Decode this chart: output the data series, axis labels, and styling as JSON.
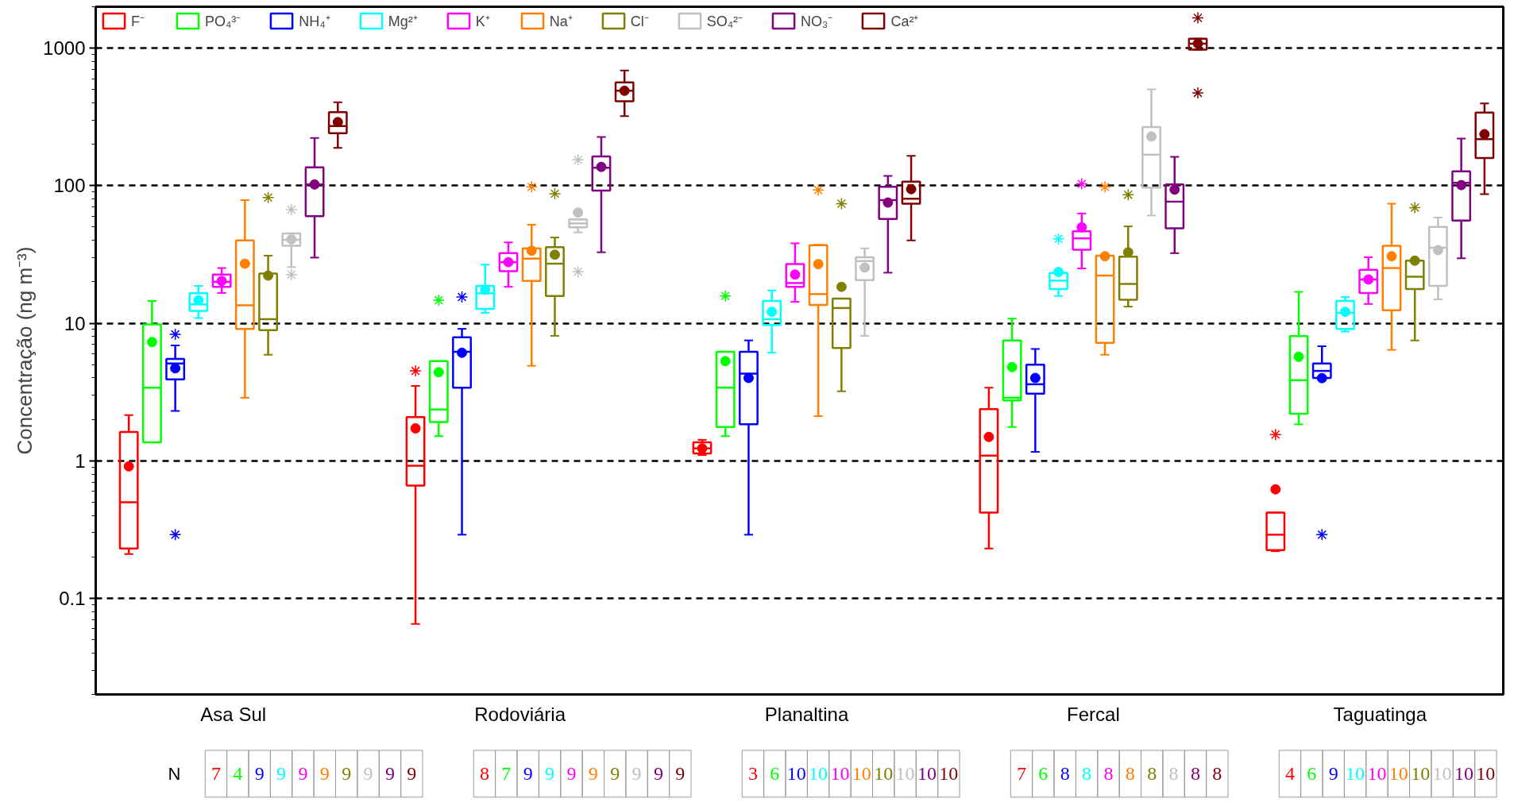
{
  "chart_data": {
    "type": "box",
    "ylabel": "Concentração (ng m⁻³)",
    "categories": [
      "Asa Sul",
      "Rodoviária",
      "Planaltina",
      "Fercal",
      "Taguatinga"
    ],
    "ylim": [
      0.02,
      2000
    ],
    "yticks": [
      0.1,
      1,
      10,
      100,
      1000
    ],
    "log": "y",
    "grid": "y",
    "legend": "top left",
    "annotations": [
      "N"
    ],
    "series": [
      {
        "name": "F⁻",
        "color": "#ff0000",
        "value_labels": [
          "7",
          "8",
          "3",
          "7",
          "4"
        ],
        "boxes": [
          {
            "low": 0.21,
            "q1": 0.23,
            "median": 0.5,
            "q3": 1.62,
            "high": 2.15,
            "mean": 0.91
          },
          {
            "low": 0.065,
            "q1": 0.66,
            "median": 0.92,
            "q3": 2.08,
            "high": 3.5,
            "mean": 1.72,
            "outliers": [
              4.5
            ]
          },
          {
            "low": 1.1,
            "q1": 1.13,
            "median": 1.23,
            "q3": 1.36,
            "high": 1.42,
            "mean": 1.23
          },
          {
            "low": 0.23,
            "q1": 0.42,
            "median": 1.09,
            "q3": 2.37,
            "high": 3.4,
            "mean": 1.49
          },
          {
            "low": 0.22,
            "q1": 0.224,
            "median": 0.29,
            "q3": 0.42,
            "high": 0.42,
            "mean": 0.62,
            "outliers": [
              1.55
            ]
          }
        ]
      },
      {
        "name": "PO₄³⁻",
        "color": "#00ff00",
        "value_labels": [
          "4",
          "7",
          "6",
          "6",
          "6"
        ],
        "boxes": [
          {
            "low": 1.36,
            "q1": 1.36,
            "median": 3.4,
            "q3": 9.8,
            "high": 14.5,
            "mean": 7.3
          },
          {
            "low": 1.51,
            "q1": 1.91,
            "median": 2.36,
            "q3": 5.3,
            "high": 5.3,
            "mean": 4.4,
            "outliers": [
              14.7
            ]
          },
          {
            "low": 1.51,
            "q1": 1.76,
            "median": 3.4,
            "q3": 6.2,
            "high": 6.2,
            "mean": 5.3,
            "outliers": [
              15.8
            ]
          },
          {
            "low": 1.76,
            "q1": 2.75,
            "median": 2.87,
            "q3": 7.5,
            "high": 10.8,
            "mean": 4.8
          },
          {
            "low": 1.84,
            "q1": 2.2,
            "median": 3.85,
            "q3": 8.05,
            "high": 16.9,
            "mean": 5.7
          }
        ]
      },
      {
        "name": "NH₄⁺",
        "color": "#0000ff",
        "value_labels": [
          "9",
          "9",
          "10",
          "8",
          "9"
        ],
        "boxes": [
          {
            "low": 2.3,
            "q1": 3.9,
            "median": 5.1,
            "q3": 5.5,
            "high": 6.9,
            "mean": 4.7,
            "outliers": [
              8.3,
              0.29
            ]
          },
          {
            "low": 0.29,
            "q1": 3.4,
            "median": 6.2,
            "q3": 7.9,
            "high": 9.1,
            "mean": 6.1,
            "outliers": [
              15.5
            ]
          },
          {
            "low": 0.29,
            "q1": 1.84,
            "median": 4.3,
            "q3": 6.2,
            "high": 7.5,
            "mean": 4.0
          },
          {
            "low": 1.16,
            "q1": 3.07,
            "median": 3.6,
            "q3": 5.0,
            "high": 6.5,
            "mean": 4.0
          },
          {
            "low": 4.0,
            "q1": 4.0,
            "median": 4.5,
            "q3": 5.1,
            "high": 6.8,
            "mean": 3.99,
            "outliers": [
              0.29
            ]
          }
        ]
      },
      {
        "name": "Mg²⁺",
        "color": "#00ffff",
        "value_labels": [
          "9",
          "9",
          "10",
          "8",
          "10"
        ],
        "boxes": [
          {
            "low": 10.9,
            "q1": 12.3,
            "median": 13.7,
            "q3": 16.5,
            "high": 18.7,
            "mean": 14.7
          },
          {
            "low": 11.9,
            "q1": 12.7,
            "median": 16.5,
            "q3": 18.7,
            "high": 26.7,
            "mean": 17.5
          },
          {
            "low": 6.1,
            "q1": 9.7,
            "median": 10.7,
            "q3": 14.5,
            "high": 17.3,
            "mean": 12.1
          },
          {
            "low": 15.8,
            "q1": 17.7,
            "median": 20.4,
            "q3": 23.2,
            "high": 23.9,
            "mean": 23.6,
            "outliers": [
              41.1
            ]
          },
          {
            "low": 8.7,
            "q1": 9.1,
            "median": 11.9,
            "q3": 14.5,
            "high": 15.5,
            "mean": 12.1
          }
        ]
      },
      {
        "name": "K⁺",
        "color": "#ff00ff",
        "value_labels": [
          "9",
          "9",
          "10",
          "8",
          "10"
        ],
        "boxes": [
          {
            "low": 16.6,
            "q1": 18.4,
            "median": 20,
            "q3": 22.6,
            "high": 25.2,
            "mean": 20.3
          },
          {
            "low": 18.4,
            "q1": 23.9,
            "median": 27.8,
            "q3": 32.3,
            "high": 38.7,
            "mean": 27.8
          },
          {
            "low": 14.3,
            "q1": 18.4,
            "median": 19.6,
            "q3": 26.9,
            "high": 38.1,
            "mean": 22.6
          },
          {
            "low": 25,
            "q1": 34.2,
            "median": 41.4,
            "q3": 46.6,
            "high": 62.8,
            "mean": 49.8,
            "outliers": [
              103
            ]
          },
          {
            "low": 13.8,
            "q1": 16.6,
            "median": 20.8,
            "q3": 24.5,
            "high": 30.2,
            "mean": 20.8
          }
        ]
      },
      {
        "name": "Na⁺",
        "color": "#ff8000",
        "value_labels": [
          "9",
          "9",
          "10",
          "8",
          "10"
        ],
        "boxes": [
          {
            "low": 2.87,
            "q1": 9.1,
            "median": 13.5,
            "q3": 40,
            "high": 78.5,
            "mean": 27.1
          },
          {
            "low": 4.9,
            "q1": 20.3,
            "median": 29.5,
            "q3": 35,
            "high": 52,
            "mean": 33.7,
            "outliers": [
              98
            ]
          },
          {
            "low": 2.11,
            "q1": 13.6,
            "median": 16.3,
            "q3": 37,
            "high": 37.2,
            "mean": 26.9,
            "outliers": [
              93
            ]
          },
          {
            "low": 5.9,
            "q1": 7.2,
            "median": 22.2,
            "q3": 31,
            "high": 31,
            "mean": 30.7,
            "outliers": [
              98
            ]
          },
          {
            "low": 6.4,
            "q1": 12.4,
            "median": 25.2,
            "q3": 36.6,
            "high": 74,
            "mean": 30.7
          }
        ]
      },
      {
        "name": "Cl⁻",
        "color": "#808000",
        "value_labels": [
          "9",
          "9",
          "10",
          "8",
          "10"
        ],
        "boxes": [
          {
            "low": 5.9,
            "q1": 8.9,
            "median": 10.7,
            "q3": 23,
            "high": 31,
            "mean": 22.2,
            "outliers": [
              82
            ]
          },
          {
            "low": 8.1,
            "q1": 15.8,
            "median": 27.1,
            "q3": 35.7,
            "high": 42,
            "mean": 31.5,
            "outliers": [
              87.5
            ]
          },
          {
            "low": 3.2,
            "q1": 6.6,
            "median": 12.9,
            "q3": 15.1,
            "high": 15.1,
            "mean": 18.4,
            "outliers": [
              74
            ]
          },
          {
            "low": 13.2,
            "q1": 14.8,
            "median": 19.3,
            "q3": 30.5,
            "high": 50.6,
            "mean": 32.8,
            "outliers": [
              86
            ]
          },
          {
            "low": 7.5,
            "q1": 17.7,
            "median": 21.8,
            "q3": 28.5,
            "high": 28.5,
            "mean": 28.5,
            "outliers": [
              69.3
            ]
          }
        ]
      },
      {
        "name": "SO₄²⁻",
        "color": "#c0c0c0",
        "value_labels": [
          "9",
          "9",
          "10",
          "8",
          "10"
        ],
        "boxes": [
          {
            "low": 25.6,
            "q1": 36.6,
            "median": 40.4,
            "q3": 45,
            "high": 45,
            "mean": 40.7,
            "outliers": [
              67,
              22.6
            ]
          },
          {
            "low": 45.8,
            "q1": 49.8,
            "median": 53.2,
            "q3": 56.9,
            "high": 56.9,
            "mean": 63.8,
            "outliers": [
              154,
              23.7
            ]
          },
          {
            "low": 8.1,
            "q1": 20.6,
            "median": 28.3,
            "q3": 30.2,
            "high": 35,
            "mean": 25.4
          },
          {
            "low": 60.7,
            "q1": 96.7,
            "median": 168,
            "q3": 267,
            "high": 502,
            "mean": 228
          },
          {
            "low": 14.9,
            "q1": 18.7,
            "median": 35.4,
            "q3": 50.1,
            "high": 58.7,
            "mean": 34
          }
        ]
      },
      {
        "name": "NO₃⁻",
        "color": "#800080",
        "value_labels": [
          "9",
          "9",
          "10",
          "8",
          "10"
        ],
        "boxes": [
          {
            "low": 30,
            "q1": 60,
            "median": 102,
            "q3": 136,
            "high": 222,
            "mean": 102
          },
          {
            "low": 32.8,
            "q1": 92,
            "median": 135,
            "q3": 163,
            "high": 226,
            "mean": 137
          },
          {
            "low": 23.3,
            "q1": 57.3,
            "median": 78.6,
            "q3": 98,
            "high": 118,
            "mean": 75.4
          },
          {
            "low": 32.3,
            "q1": 49,
            "median": 76.6,
            "q3": 102,
            "high": 162,
            "mean": 93.6
          },
          {
            "low": 29.7,
            "q1": 55.8,
            "median": 105,
            "q3": 127,
            "high": 220,
            "mean": 101
          }
        ]
      },
      {
        "name": "Ca²⁺",
        "color": "#800000",
        "value_labels": [
          "9",
          "9",
          "10",
          "8",
          "10"
        ],
        "boxes": [
          {
            "low": 188,
            "q1": 241,
            "median": 271,
            "q3": 342,
            "high": 404,
            "mean": 290
          },
          {
            "low": 320,
            "q1": 411,
            "median": 490,
            "q3": 564,
            "high": 689,
            "mean": 490
          },
          {
            "low": 40,
            "q1": 74,
            "median": 80.5,
            "q3": 107,
            "high": 165,
            "mean": 94.4
          },
          {
            "low": 976,
            "q1": 976,
            "median": 1079,
            "q3": 1172,
            "high": 1172,
            "mean": 1080,
            "outliers": [
              1660,
              473
            ]
          },
          {
            "low": 86.9,
            "q1": 159,
            "median": 218,
            "q3": 340,
            "high": 397,
            "mean": 237
          }
        ]
      }
    ]
  }
}
